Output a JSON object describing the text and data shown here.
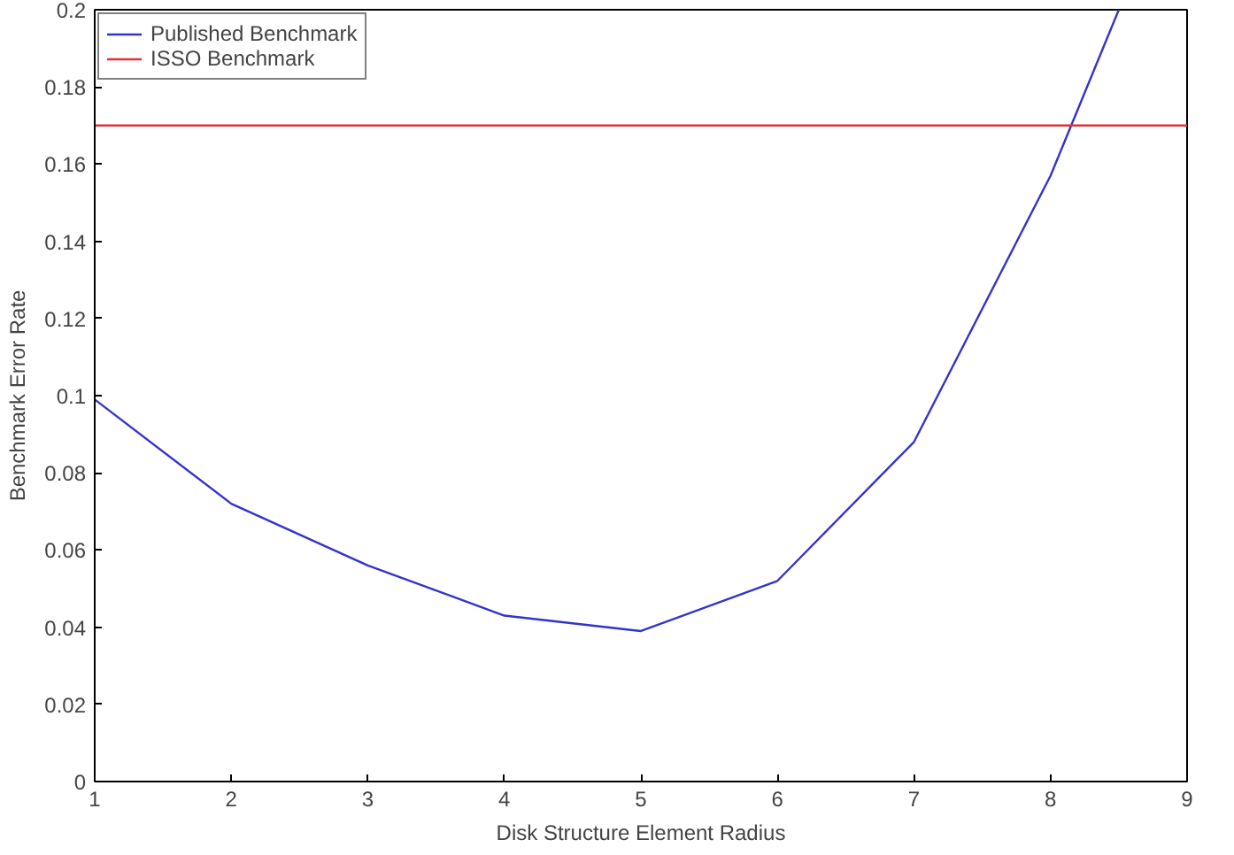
{
  "chart_data": {
    "type": "line",
    "xlabel": "Disk Structure Element Radius",
    "ylabel": "Benchmark Error Rate",
    "series": [
      {
        "name": "Published Benchmark",
        "color": "#3333cc",
        "x": [
          1,
          2,
          3,
          4,
          5,
          6,
          7,
          8,
          8.5
        ],
        "values": [
          0.099,
          0.072,
          0.056,
          0.043,
          0.039,
          0.052,
          0.088,
          0.157,
          0.2
        ]
      },
      {
        "name": "ISSO Benchmark",
        "color": "#dd3333",
        "x": [
          1,
          9
        ],
        "values": [
          0.17,
          0.17
        ]
      }
    ],
    "xlim": [
      1,
      9
    ],
    "ylim": [
      0,
      0.2
    ],
    "xticks": [
      1,
      2,
      3,
      4,
      5,
      6,
      7,
      8,
      9
    ],
    "yticks": [
      0,
      0.02,
      0.04,
      0.06,
      0.08,
      0.1,
      0.12,
      0.14,
      0.16,
      0.18,
      0.2
    ],
    "grid": false,
    "legend": "top left",
    "line_style": "solid",
    "marker": "none"
  }
}
